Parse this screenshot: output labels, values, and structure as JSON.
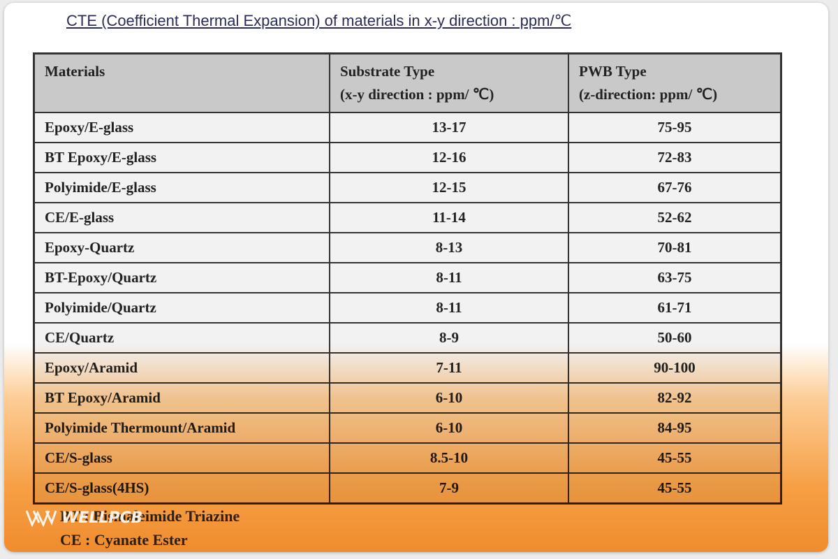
{
  "title": "CTE (Coefficient Thermal Expansion) of materials in x-y direction : ppm/℃",
  "table": {
    "header": [
      {
        "lines": [
          "Materials"
        ]
      },
      {
        "lines": [
          "Substrate Type",
          "(x-y direction : ppm/ ℃)"
        ]
      },
      {
        "lines": [
          "PWB Type",
          "(z-direction: ppm/ ℃)"
        ]
      }
    ],
    "rows": [
      [
        "Epoxy/E-glass",
        "13-17",
        "75-95"
      ],
      [
        "BT Epoxy/E-glass",
        "12-16",
        "72-83"
      ],
      [
        "Polyimide/E-glass",
        "12-15",
        "67-76"
      ],
      [
        "CE/E-glass",
        "11-14",
        "52-62"
      ],
      [
        "Epoxy-Quartz",
        "8-13",
        "70-81"
      ],
      [
        "BT-Epoxy/Quartz",
        "8-11",
        "63-75"
      ],
      [
        "Polyimide/Quartz",
        "8-11",
        "61-71"
      ],
      [
        "CE/Quartz",
        "8-9",
        "50-60"
      ],
      [
        "Epoxy/Aramid",
        "7-11",
        "90-100"
      ],
      [
        "BT Epoxy/Aramid",
        "6-10",
        "82-92"
      ],
      [
        "Polyimide Thermount/Aramid",
        "6-10",
        "84-95"
      ],
      [
        "CE/S-glass",
        "8.5-10",
        "45-55"
      ],
      [
        "CE/S-glass(4HS)",
        "7-9",
        "45-55"
      ]
    ]
  },
  "footnotes": [
    "BT : Bismaleimide Triazine",
    "CE : Cyanate Ester"
  ],
  "watermark": "WELLPCB"
}
